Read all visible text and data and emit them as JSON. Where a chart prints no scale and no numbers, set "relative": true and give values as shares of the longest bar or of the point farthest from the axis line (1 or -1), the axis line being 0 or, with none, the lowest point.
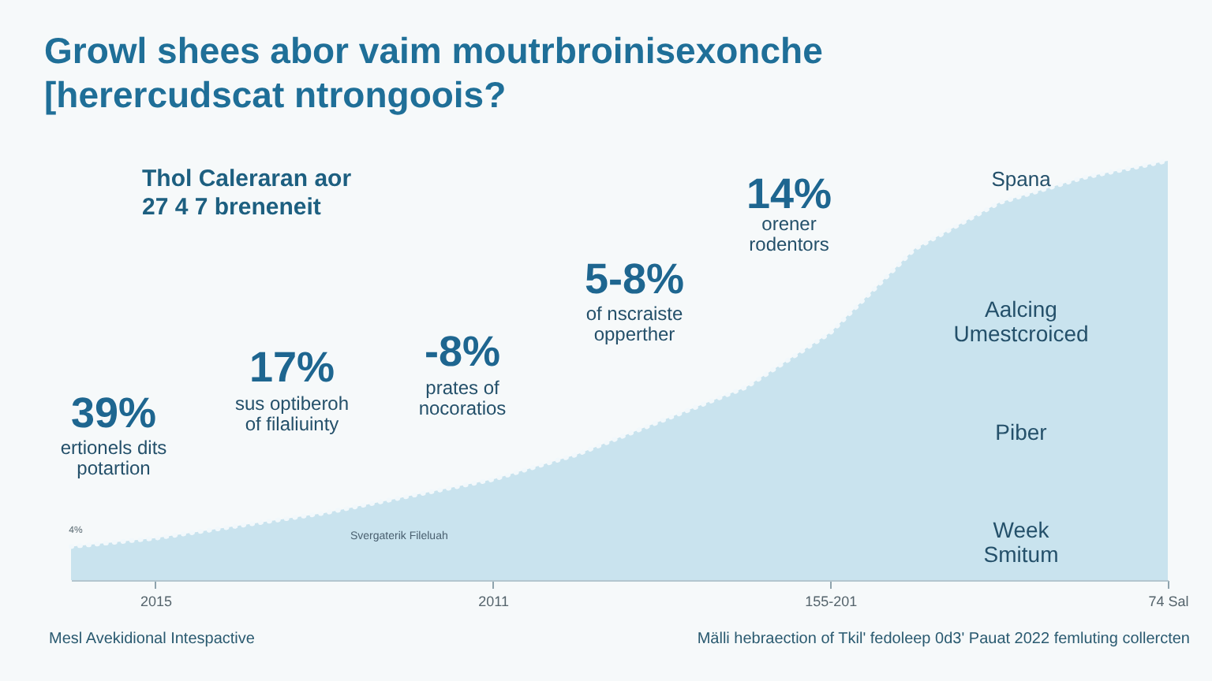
{
  "chart_data": {
    "type": "area",
    "relative": true,
    "line_style": "dotted",
    "title": "Growl shees abor vaim moutrbroinisexonche [herercudscat ntrongoois?",
    "subtitle": "Thol Caleraran aor 27 4 7 breneneit",
    "categories": [
      null,
      "2015",
      null,
      null,
      null,
      "2011",
      null,
      null,
      null,
      "155-201",
      null,
      null,
      null,
      "74 Sal"
    ],
    "series": [
      {
        "color": "#c6e2ed",
        "values": [
          0.08,
          0.1,
          0.13,
          0.16,
          0.2,
          0.24,
          0.3,
          0.38,
          0.46,
          0.59,
          0.79,
          0.9,
          0.96,
          1.0
        ]
      }
    ],
    "annotations": [
      "39%",
      "ertionels dits potartion",
      "17%",
      "sus optiberoh of filaliuinty",
      "-8%",
      "prates of nocoratios",
      "5-8%",
      "of nscraiste opperther",
      "14%",
      "orener rodentors",
      "Spana",
      "Aalcing Umestcroiced",
      "Piber",
      "Week Smitum",
      "4%",
      "Svergaterik Fileluah",
      "Mesl Avekidional Intespactive",
      "Mälli hebraection of Tkil' fedoleep 0d3' Pauat 2022 femluting collercten"
    ]
  }
}
